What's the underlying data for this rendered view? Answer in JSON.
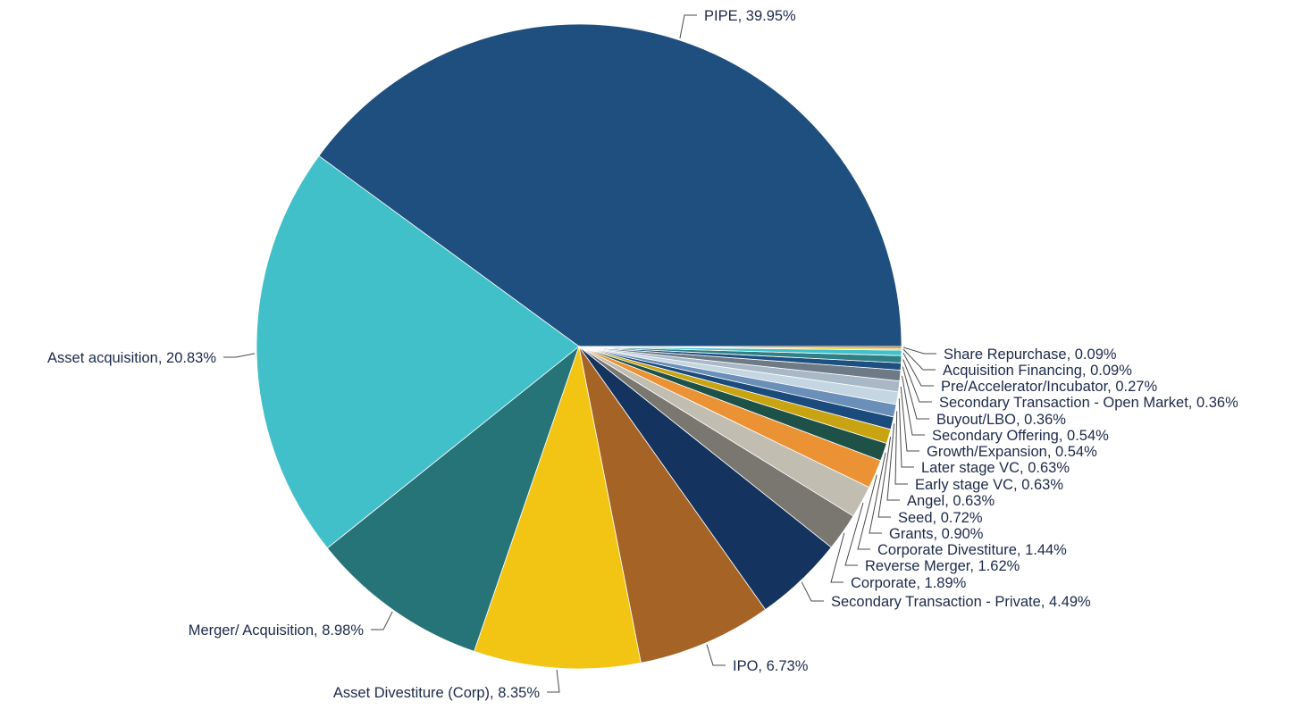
{
  "chart_data": {
    "type": "pie",
    "title": "",
    "start_angle_deg": 0,
    "direction": "counterclockwise",
    "slices": [
      {
        "label": "PIPE, 39.95%",
        "name": "PIPE",
        "value": 39.95,
        "color": "#1f4f7e"
      },
      {
        "label": "Asset acquisition, 20.83%",
        "name": "Asset acquisition",
        "value": 20.83,
        "color": "#41c0c9"
      },
      {
        "label": "Merger/ Acquisition, 8.98%",
        "name": "Merger/ Acquisition",
        "value": 8.98,
        "color": "#267378"
      },
      {
        "label": "Asset Divestiture (Corp), 8.35%",
        "name": "Asset Divestiture (Corp)",
        "value": 8.35,
        "color": "#f2c515"
      },
      {
        "label": "IPO, 6.73%",
        "name": "IPO",
        "value": 6.73,
        "color": "#a56325"
      },
      {
        "label": "Secondary Transaction - Private, 4.49%",
        "name": "Secondary Transaction - Private",
        "value": 4.49,
        "color": "#14335e"
      },
      {
        "label": "Corporate, 1.89%",
        "name": "Corporate",
        "value": 1.89,
        "color": "#797770"
      },
      {
        "label": "Reverse Merger, 1.62%",
        "name": "Reverse Merger",
        "value": 1.62,
        "color": "#c1bdb1"
      },
      {
        "label": "Corporate Divestiture, 1.44%",
        "name": "Corporate Divestiture",
        "value": 1.44,
        "color": "#ea9234"
      },
      {
        "label": "Grants, 0.90%",
        "name": "Grants",
        "value": 0.9,
        "color": "#1e5249"
      },
      {
        "label": "Seed, 0.72%",
        "name": "Seed",
        "value": 0.72,
        "color": "#c9a412"
      },
      {
        "label": "Angel, 0.63%",
        "name": "Angel",
        "value": 0.63,
        "color": "#1b4a7c"
      },
      {
        "label": "Early stage VC, 0.63%",
        "name": "Early stage VC",
        "value": 0.63,
        "color": "#6a8fb8"
      },
      {
        "label": "Later stage VC, 0.63%",
        "name": "Later stage VC",
        "value": 0.63,
        "color": "#c5d6e3"
      },
      {
        "label": "Growth/Expansion, 0.54%",
        "name": "Growth/Expansion",
        "value": 0.54,
        "color": "#a8b8c6"
      },
      {
        "label": "Secondary Offering, 0.54%",
        "name": "Secondary Offering",
        "value": 0.54,
        "color": "#6e7b86"
      },
      {
        "label": "Buyout/LBO, 0.36%",
        "name": "Buyout/LBO",
        "value": 0.36,
        "color": "#1d4f80"
      },
      {
        "label": "Secondary Transaction - Open Market, 0.36%",
        "name": "Secondary Transaction - Open Market",
        "value": 0.36,
        "color": "#2f7f86"
      },
      {
        "label": "Pre/Accelerator/Incubator, 0.27%",
        "name": "Pre/Accelerator/Incubator",
        "value": 0.27,
        "color": "#41c0c9"
      },
      {
        "label": "Acquisition Financing, 0.09%",
        "name": "Acquisition Financing",
        "value": 0.09,
        "color": "#f2c515"
      },
      {
        "label": "Share Repurchase, 0.09%",
        "name": "Share Repurchase",
        "value": 0.09,
        "color": "#a56325"
      }
    ]
  }
}
